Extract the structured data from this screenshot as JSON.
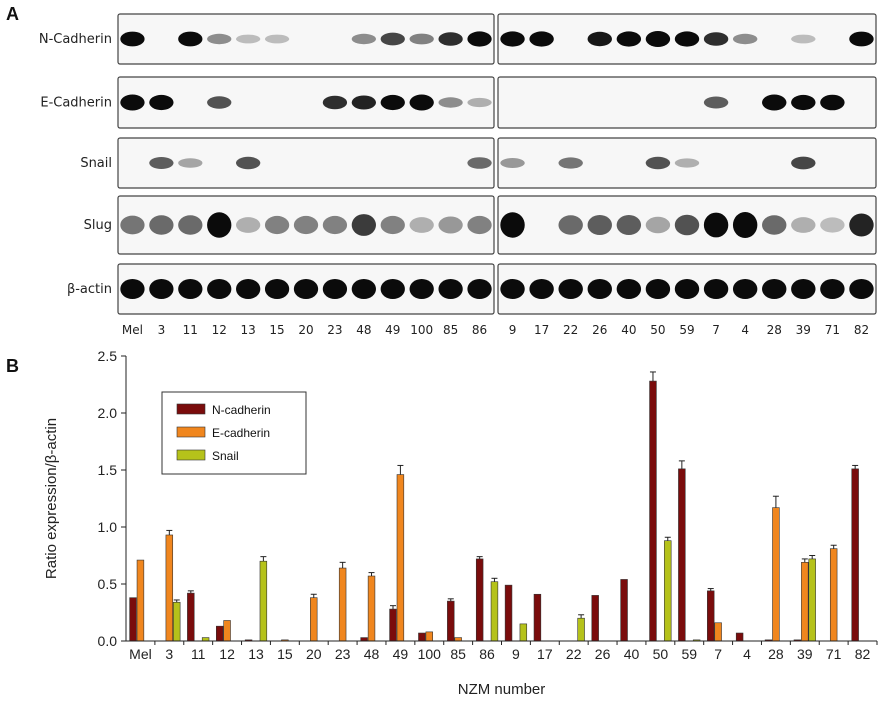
{
  "panels": {
    "a": "A",
    "b": "B"
  },
  "blot": {
    "labels": [
      "N-Cadherin",
      "E-Cadherin",
      "Snail",
      "Slug",
      "β-actin"
    ],
    "lanes_left": [
      "Mel",
      "3",
      "11",
      "12",
      "13",
      "15",
      "20",
      "23",
      "48",
      "49",
      "100",
      "85",
      "86"
    ],
    "lanes_right": [
      "9",
      "17",
      "22",
      "26",
      "40",
      "50",
      "59",
      "7",
      "4",
      "28",
      "39",
      "71",
      "82"
    ],
    "colors": {
      "band": "#0b0b0b",
      "background": "#f7f7f7",
      "frame": "#444444"
    },
    "intensities": {
      "N-Cadherin": [
        0.85,
        0,
        0.85,
        0.3,
        0.1,
        0.1,
        0,
        0,
        0.3,
        0.6,
        0.35,
        0.7,
        0.9,
        0.9,
        0.9,
        0,
        0.8,
        0.9,
        1,
        0.9,
        0.7,
        0.3,
        0,
        0.1,
        0,
        0.85
      ],
      "E-Cadherin": [
        1,
        0.9,
        0,
        0.55,
        0,
        0,
        0,
        0.7,
        0.75,
        0.9,
        1,
        0.3,
        0.15,
        0,
        0,
        0,
        0,
        0,
        0,
        0,
        0.5,
        0,
        1,
        0.9,
        0.95,
        0
      ],
      "Snail": [
        0,
        0.5,
        0.2,
        0,
        0.55,
        0,
        0,
        0,
        0,
        0,
        0,
        0,
        0.45,
        0.25,
        0,
        0.4,
        0,
        0,
        0.55,
        0.15,
        0,
        0,
        0,
        0.6,
        0,
        0
      ],
      "Slug": [
        0.4,
        0.45,
        0.45,
        0.95,
        0.15,
        0.35,
        0.35,
        0.35,
        0.65,
        0.35,
        0.15,
        0.25,
        0.35,
        0.95,
        0,
        0.45,
        0.5,
        0.5,
        0.2,
        0.55,
        0.9,
        1,
        0.45,
        0.15,
        0.1,
        0.75
      ],
      "β-actin": [
        0.95,
        0.95,
        0.95,
        0.95,
        0.95,
        0.95,
        0.95,
        0.95,
        0.95,
        0.95,
        0.95,
        0.95,
        0.95,
        0.9,
        0.9,
        0.9,
        0.9,
        0.9,
        0.9,
        0.9,
        0.9,
        0.9,
        0.9,
        0.9,
        0.9,
        0.9
      ]
    }
  },
  "chart_data": {
    "type": "bar",
    "categories": [
      "Mel",
      "3",
      "11",
      "12",
      "13",
      "15",
      "20",
      "23",
      "48",
      "49",
      "100",
      "85",
      "86",
      "9",
      "17",
      "22",
      "26",
      "40",
      "50",
      "59",
      "7",
      "4",
      "28",
      "39",
      "71",
      "82"
    ],
    "series": [
      {
        "name": "N-cadherin",
        "color": "#7a0c0c",
        "values": [
          0.38,
          0,
          0.42,
          0.13,
          0.01,
          0,
          0,
          0,
          0.03,
          0.28,
          0.07,
          0.35,
          0.72,
          0.49,
          0.41,
          0,
          0.4,
          0.54,
          2.28,
          1.51,
          0.44,
          0.07,
          0.01,
          0.01,
          0,
          1.51
        ],
        "errors": [
          0,
          0,
          0.02,
          0,
          0,
          0,
          0,
          0,
          0,
          0.03,
          0,
          0.02,
          0.02,
          0,
          0,
          0,
          0,
          0,
          0.08,
          0.07,
          0.02,
          0,
          0,
          0,
          0,
          0.03
        ]
      },
      {
        "name": "E-cadherin",
        "color": "#f0861e",
        "values": [
          0.71,
          0.93,
          0,
          0.18,
          0,
          0.01,
          0.38,
          0.64,
          0.57,
          1.46,
          0.08,
          0.03,
          0,
          0,
          0,
          0,
          0,
          0,
          0,
          0,
          0.16,
          0,
          1.17,
          0.69,
          0.81,
          0
        ],
        "errors": [
          0,
          0.04,
          0,
          0,
          0,
          0,
          0.03,
          0.05,
          0.03,
          0.08,
          0,
          0,
          0,
          0,
          0,
          0,
          0,
          0,
          0,
          0,
          0,
          0,
          0.1,
          0.03,
          0.03,
          0
        ]
      },
      {
        "name": "Snail",
        "color": "#b5c21a",
        "values": [
          0,
          0.34,
          0.03,
          0,
          0.7,
          0,
          0,
          0,
          0,
          0,
          0,
          0,
          0.52,
          0.15,
          0,
          0.2,
          0,
          0,
          0.88,
          0.01,
          0,
          0,
          0,
          0.72,
          0,
          0
        ],
        "errors": [
          0,
          0.02,
          0,
          0,
          0.04,
          0,
          0,
          0,
          0,
          0,
          0,
          0,
          0.03,
          0,
          0,
          0.03,
          0,
          0,
          0.03,
          0,
          0,
          0,
          0,
          0.03,
          0,
          0
        ]
      }
    ],
    "xlabel": "NZM number",
    "ylabel": "Ratio expression/β-actin",
    "ylim": [
      0,
      2.5
    ],
    "yticks": [
      "0.0",
      "0.5",
      "1.0",
      "1.5",
      "2.0",
      "2.5"
    ],
    "legend_position": "top-left",
    "grid": false
  }
}
